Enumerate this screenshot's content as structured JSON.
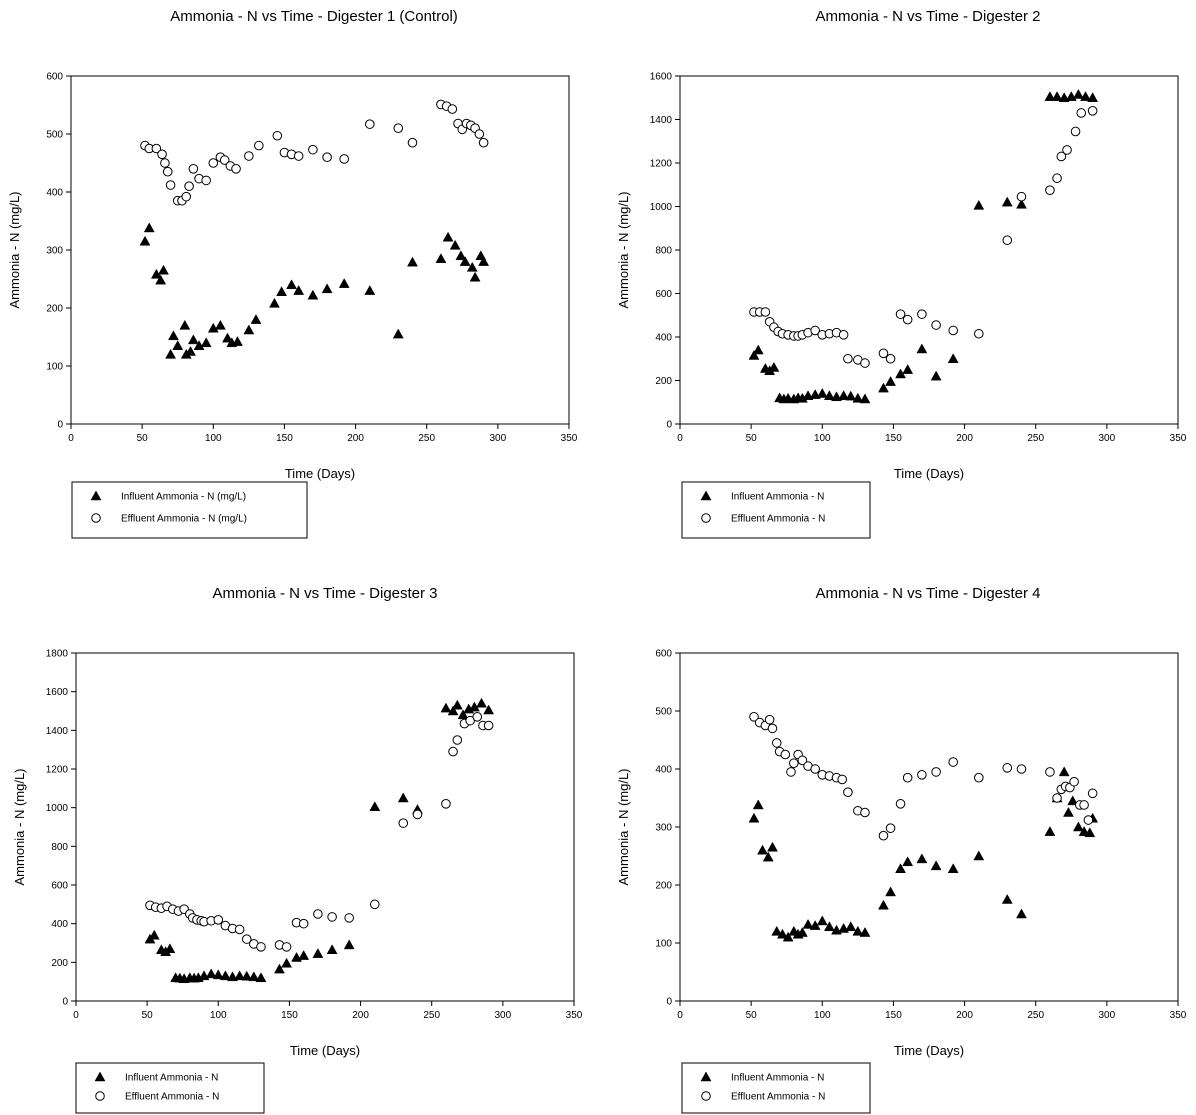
{
  "chart_data": [
    {
      "type": "scatter",
      "title": "Ammonia - N vs Time - Digester 1 (Control)",
      "xlabel": "Time (Days)",
      "ylabel": "Ammonia - N (mg/L)",
      "xlim": [
        0,
        350
      ],
      "ylim": [
        0,
        600
      ],
      "xticks": [
        "0",
        "50",
        "100",
        "150",
        "200",
        "250",
        "300",
        "350"
      ],
      "yticks": [
        "0",
        "100",
        "200",
        "300",
        "400",
        "500",
        "600"
      ],
      "grid": false,
      "legend_position": "below-left",
      "series": [
        {
          "name": "Influent Ammonia - N (mg/L)",
          "marker": "filled-triangle",
          "x": [
            52,
            55,
            60,
            63,
            65,
            70,
            72,
            75,
            80,
            81,
            84,
            86,
            90,
            95,
            100,
            105,
            110,
            113,
            117,
            125,
            130,
            143,
            148,
            155,
            160,
            170,
            180,
            192,
            210,
            230,
            240,
            260,
            265,
            270,
            274,
            277,
            282,
            284,
            288,
            290
          ],
          "y": [
            315,
            338,
            258,
            248,
            265,
            120,
            152,
            135,
            170,
            120,
            125,
            145,
            135,
            140,
            165,
            170,
            148,
            140,
            142,
            162,
            180,
            208,
            228,
            240,
            230,
            222,
            233,
            242,
            230,
            155,
            279,
            285,
            322,
            308,
            290,
            280,
            270,
            253,
            290,
            280
          ]
        },
        {
          "name": "Effluent Ammonia - N (mg/L)",
          "marker": "open-circle",
          "x": [
            52,
            55,
            60,
            64,
            66,
            68,
            70,
            75,
            78,
            81,
            83,
            86,
            90,
            95,
            100,
            105,
            108,
            112,
            116,
            125,
            132,
            145,
            150,
            155,
            160,
            170,
            180,
            192,
            210,
            230,
            240,
            260,
            264,
            268,
            272,
            275,
            278,
            281,
            284,
            287,
            290
          ],
          "y": [
            480,
            475,
            475,
            465,
            450,
            435,
            412,
            385,
            385,
            392,
            410,
            440,
            423,
            420,
            450,
            460,
            455,
            445,
            440,
            462,
            480,
            497,
            468,
            465,
            462,
            473,
            460,
            457,
            517,
            510,
            485,
            551,
            548,
            543,
            518,
            508,
            518,
            515,
            510,
            500,
            485
          ]
        }
      ]
    },
    {
      "type": "scatter",
      "title": "Ammonia - N vs Time - Digester 2",
      "xlabel": "Time (Days)",
      "ylabel": "Ammonia - N (mg/L)",
      "xlim": [
        0,
        350
      ],
      "ylim": [
        0,
        1600
      ],
      "xticks": [
        "0",
        "50",
        "100",
        "150",
        "200",
        "250",
        "300",
        "350"
      ],
      "yticks": [
        "0",
        "200",
        "400",
        "600",
        "800",
        "1000",
        "1200",
        "1400",
        "1600"
      ],
      "grid": false,
      "legend_position": "below-left",
      "series": [
        {
          "name": "Influent Ammonia - N",
          "marker": "filled-triangle",
          "x": [
            52,
            55,
            60,
            63,
            66,
            70,
            73,
            76,
            80,
            83,
            86,
            90,
            95,
            100,
            105,
            110,
            115,
            120,
            125,
            130,
            143,
            148,
            155,
            160,
            170,
            180,
            192,
            210,
            230,
            240,
            260,
            265,
            270,
            275,
            280,
            285,
            290
          ],
          "y": [
            315,
            340,
            255,
            245,
            260,
            120,
            115,
            118,
            115,
            120,
            118,
            130,
            135,
            140,
            130,
            125,
            130,
            128,
            118,
            115,
            165,
            195,
            230,
            250,
            345,
            220,
            300,
            1005,
            1020,
            1010,
            1505,
            1505,
            1500,
            1505,
            1515,
            1505,
            1500
          ]
        },
        {
          "name": "Effluent Ammonia - N",
          "marker": "open-circle",
          "x": [
            52,
            56,
            60,
            63,
            66,
            69,
            72,
            76,
            80,
            83,
            86,
            90,
            95,
            100,
            105,
            110,
            115,
            118,
            125,
            130,
            143,
            148,
            155,
            160,
            170,
            180,
            192,
            210,
            230,
            240,
            260,
            265,
            268,
            272,
            278,
            282,
            290
          ],
          "y": [
            515,
            515,
            515,
            470,
            445,
            425,
            415,
            410,
            405,
            405,
            410,
            420,
            430,
            410,
            415,
            420,
            410,
            300,
            295,
            280,
            325,
            300,
            505,
            480,
            505,
            455,
            430,
            415,
            845,
            1045,
            1075,
            1130,
            1230,
            1260,
            1345,
            1430,
            1440
          ]
        }
      ]
    },
    {
      "type": "scatter",
      "title": "Ammonia - N vs Time - Digester 3",
      "xlabel": "Time (Days)",
      "ylabel": "Ammonia - N (mg/L)",
      "xlim": [
        0,
        350
      ],
      "ylim": [
        0,
        1800
      ],
      "xticks": [
        "0",
        "50",
        "100",
        "150",
        "200",
        "250",
        "300",
        "350"
      ],
      "yticks": [
        "0",
        "200",
        "400",
        "600",
        "800",
        "1000",
        "1200",
        "1400",
        "1600",
        "1800"
      ],
      "grid": false,
      "legend_position": "below-left",
      "series": [
        {
          "name": "Influent Ammonia - N",
          "marker": "filled-triangle",
          "x": [
            52,
            55,
            60,
            63,
            66,
            70,
            73,
            76,
            80,
            83,
            86,
            90,
            95,
            100,
            105,
            110,
            115,
            120,
            125,
            130,
            143,
            148,
            155,
            160,
            170,
            180,
            192,
            210,
            230,
            240,
            260,
            265,
            268,
            272,
            276,
            280,
            285,
            290
          ],
          "y": [
            320,
            340,
            265,
            255,
            270,
            120,
            118,
            115,
            120,
            118,
            120,
            130,
            140,
            135,
            130,
            125,
            130,
            128,
            125,
            120,
            165,
            195,
            225,
            235,
            245,
            265,
            290,
            1005,
            1050,
            990,
            1515,
            1500,
            1530,
            1480,
            1510,
            1520,
            1540,
            1505
          ]
        },
        {
          "name": "Effluent Ammonia - N",
          "marker": "open-circle",
          "x": [
            52,
            56,
            60,
            64,
            68,
            72,
            76,
            80,
            82,
            85,
            88,
            90,
            95,
            100,
            105,
            110,
            115,
            120,
            125,
            130,
            143,
            148,
            155,
            160,
            170,
            180,
            192,
            210,
            230,
            240,
            260,
            265,
            268,
            273,
            277,
            282,
            286,
            290
          ],
          "y": [
            495,
            485,
            480,
            490,
            475,
            465,
            475,
            450,
            430,
            420,
            415,
            410,
            415,
            420,
            390,
            375,
            370,
            320,
            295,
            280,
            290,
            280,
            405,
            400,
            450,
            435,
            430,
            500,
            920,
            965,
            1020,
            1290,
            1350,
            1435,
            1450,
            1470,
            1425,
            1425
          ]
        }
      ]
    },
    {
      "type": "scatter",
      "title": "Ammonia - N vs Time - Digester 4",
      "xlabel": "Time (Days)",
      "ylabel": "Ammonia - N (mg/L)",
      "xlim": [
        0,
        350
      ],
      "ylim": [
        0,
        600
      ],
      "xticks": [
        "0",
        "50",
        "100",
        "150",
        "200",
        "250",
        "300",
        "350"
      ],
      "yticks": [
        "0",
        "100",
        "200",
        "300",
        "400",
        "500",
        "600"
      ],
      "grid": false,
      "legend_position": "below-left",
      "series": [
        {
          "name": "Influent Ammonia - N",
          "marker": "filled-triangle",
          "x": [
            52,
            55,
            58,
            62,
            65,
            68,
            72,
            76,
            80,
            83,
            86,
            90,
            95,
            100,
            105,
            110,
            115,
            120,
            125,
            130,
            143,
            148,
            155,
            160,
            170,
            180,
            192,
            210,
            230,
            240,
            260,
            265,
            270,
            273,
            276,
            280,
            284,
            288,
            290
          ],
          "y": [
            315,
            338,
            260,
            248,
            265,
            120,
            115,
            110,
            120,
            115,
            118,
            132,
            130,
            138,
            128,
            122,
            125,
            128,
            120,
            118,
            165,
            188,
            228,
            240,
            245,
            233,
            228,
            250,
            175,
            150,
            292,
            350,
            395,
            325,
            345,
            300,
            292,
            290,
            315
          ]
        },
        {
          "name": "Effluent Ammonia - N",
          "marker": "open-circle",
          "x": [
            52,
            56,
            60,
            63,
            65,
            68,
            70,
            74,
            78,
            80,
            83,
            86,
            90,
            95,
            100,
            105,
            110,
            114,
            118,
            125,
            130,
            143,
            148,
            155,
            160,
            170,
            180,
            192,
            210,
            230,
            240,
            260,
            265,
            268,
            271,
            274,
            277,
            281,
            284,
            287,
            290
          ],
          "y": [
            490,
            480,
            475,
            485,
            470,
            445,
            430,
            425,
            395,
            410,
            425,
            415,
            405,
            400,
            390,
            388,
            385,
            382,
            360,
            328,
            325,
            285,
            298,
            340,
            385,
            390,
            395,
            412,
            385,
            402,
            400,
            395,
            350,
            365,
            370,
            368,
            378,
            338,
            338,
            312,
            358
          ]
        }
      ]
    }
  ]
}
